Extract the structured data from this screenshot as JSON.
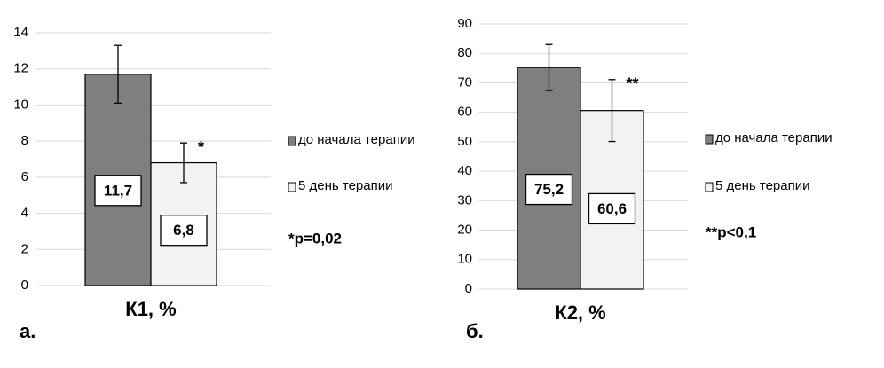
{
  "chart_data": [
    {
      "type": "bar",
      "panel_label": "а.",
      "categories": [
        "К1, %"
      ],
      "ylim": [
        0,
        14
      ],
      "yticks": [
        0,
        2,
        4,
        6,
        8,
        10,
        12,
        14
      ],
      "grid": true,
      "legend": "right",
      "note": "*p=0,02",
      "series": [
        {
          "name": "до начала терапии",
          "color": "#7f7f7f",
          "values": [
            11.7
          ],
          "value_labels": [
            "11,7"
          ],
          "errors": [
            1.6
          ]
        },
        {
          "name": "5 день терапии",
          "color": "#f2f2f2",
          "values": [
            6.8
          ],
          "value_labels": [
            "6,8"
          ],
          "errors": [
            1.1
          ],
          "marker": "*"
        }
      ]
    },
    {
      "type": "bar",
      "panel_label": "б.",
      "categories": [
        "К2, %"
      ],
      "ylim": [
        0,
        90
      ],
      "yticks": [
        0,
        10,
        20,
        30,
        40,
        50,
        60,
        70,
        80,
        90
      ],
      "grid": true,
      "legend": "right",
      "note": "**p<0,1",
      "series": [
        {
          "name": "до начала терапии",
          "color": "#7f7f7f",
          "values": [
            75.2
          ],
          "value_labels": [
            "75,2"
          ],
          "errors": [
            7.8
          ]
        },
        {
          "name": "5 день терапии",
          "color": "#f2f2f2",
          "values": [
            60.6
          ],
          "value_labels": [
            "60,6"
          ],
          "errors": [
            10.5
          ],
          "marker": "**"
        }
      ]
    }
  ]
}
